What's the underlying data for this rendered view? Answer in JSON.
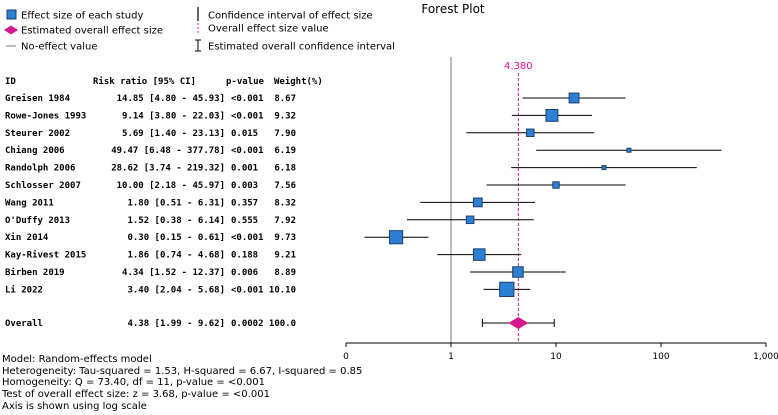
{
  "legend": {
    "effect_size": "Effect size of each study",
    "overall_effect": "Estimated overall effect size",
    "no_effect": "No-effect value",
    "ci_effect": "Confidence interval of effect size",
    "overall_value": "Overall effect size value",
    "overall_ci": "Estimated overall confidence interval"
  },
  "colors": {
    "square_fill": "#2b7fd4",
    "square_stroke": "#1a3f6e",
    "diamond": "#d6168f",
    "dashed_line": "#e0109a",
    "no_effect_line": "#7a7a7a"
  },
  "table": {
    "headers": [
      "ID",
      "Risk ratio [95% CI]",
      "p-value",
      "Weight(%)"
    ],
    "rows": [
      {
        "id": "Greisen 1984",
        "rr": "14.85 [4.80 - 45.93]",
        "p": "<0.001",
        "w": "8.67"
      },
      {
        "id": "Rowe-Jones 1993",
        "rr": "9.14 [3.80 - 22.03]",
        "p": "<0.001",
        "w": "9.32"
      },
      {
        "id": "Steurer 2002",
        "rr": "5.69 [1.40 - 23.13]",
        "p": "0.015",
        "w": "7.90"
      },
      {
        "id": "Chiang 2006",
        "rr": "49.47 [6.48 - 377.78]",
        "p": "<0.001",
        "w": "6.19"
      },
      {
        "id": "Randolph 2006",
        "rr": "28.62 [3.74 - 219.32]",
        "p": "0.001",
        "w": "6.18"
      },
      {
        "id": "Schlosser 2007",
        "rr": "10.00 [2.18 - 45.97]",
        "p": "0.003",
        "w": "7.56"
      },
      {
        "id": "Wang 2011",
        "rr": "1.80 [0.51 - 6.31]",
        "p": "0.357",
        "w": "8.32"
      },
      {
        "id": "O'Duffy 2013",
        "rr": "1.52 [0.38 - 6.14]",
        "p": "0.555",
        "w": "7.92"
      },
      {
        "id": "Xin 2014",
        "rr": "0.30 [0.15 - 0.61]",
        "p": "<0.001",
        "w": "9.73"
      },
      {
        "id": "Kay-Rivest 2015",
        "rr": "1.86 [0.74 - 4.68]",
        "p": "0.188",
        "w": "9.21"
      },
      {
        "id": "Birben 2019",
        "rr": "4.34 [1.52 - 12.37]",
        "p": "0.006",
        "w": "8.89"
      },
      {
        "id": "Li 2022",
        "rr": "3.40 [2.04 - 5.68]",
        "p": "<0.001",
        "w": "10.10"
      }
    ],
    "overall": {
      "id": "Overall",
      "rr": "4.38 [1.99 - 9.62]",
      "p": "0.0002",
      "w": "100.0"
    }
  },
  "chart_data": {
    "type": "forest",
    "title": "Forest Plot",
    "scale": "log",
    "xlim": [
      0.1,
      1000
    ],
    "ticks": [
      0.1,
      1,
      10,
      100,
      1000
    ],
    "tick_labels": [
      "0",
      "1",
      "10",
      "100",
      "1,000"
    ],
    "no_effect_value": 1,
    "overall_value_label": "4.380",
    "studies": [
      {
        "name": "Greisen 1984",
        "est": 14.85,
        "lo": 4.8,
        "hi": 45.93,
        "weight": 8.67
      },
      {
        "name": "Rowe-Jones 1993",
        "est": 9.14,
        "lo": 3.8,
        "hi": 22.03,
        "weight": 9.32
      },
      {
        "name": "Steurer 2002",
        "est": 5.69,
        "lo": 1.4,
        "hi": 23.13,
        "weight": 7.9
      },
      {
        "name": "Chiang 2006",
        "est": 49.47,
        "lo": 6.48,
        "hi": 377.78,
        "weight": 6.19
      },
      {
        "name": "Randolph 2006",
        "est": 28.62,
        "lo": 3.74,
        "hi": 219.32,
        "weight": 6.18
      },
      {
        "name": "Schlosser 2007",
        "est": 10.0,
        "lo": 2.18,
        "hi": 45.97,
        "weight": 7.56
      },
      {
        "name": "Wang 2011",
        "est": 1.8,
        "lo": 0.51,
        "hi": 6.31,
        "weight": 8.32
      },
      {
        "name": "O'Duffy 2013",
        "est": 1.52,
        "lo": 0.38,
        "hi": 6.14,
        "weight": 7.92
      },
      {
        "name": "Xin 2014",
        "est": 0.3,
        "lo": 0.15,
        "hi": 0.61,
        "weight": 9.73
      },
      {
        "name": "Kay-Rivest 2015",
        "est": 1.86,
        "lo": 0.74,
        "hi": 4.68,
        "weight": 9.21
      },
      {
        "name": "Birben 2019",
        "est": 4.34,
        "lo": 1.52,
        "hi": 12.37,
        "weight": 8.89
      },
      {
        "name": "Li 2022",
        "est": 3.4,
        "lo": 2.04,
        "hi": 5.68,
        "weight": 10.1
      }
    ],
    "overall": {
      "est": 4.38,
      "lo": 1.99,
      "hi": 9.62
    }
  },
  "footer": {
    "model": "Model: Random-effects model",
    "heterogeneity": "Heterogeneity: Tau-squared = 1.53, H-squared = 6.67, I-squared = 0.85",
    "homogeneity": "Homogeneity: Q = 73.40, df = 11, p-value = <0.001",
    "test": "Test of overall effect size: z = 3.68, p-value = <0.001",
    "axis_note": "Axis is shown using log scale"
  }
}
